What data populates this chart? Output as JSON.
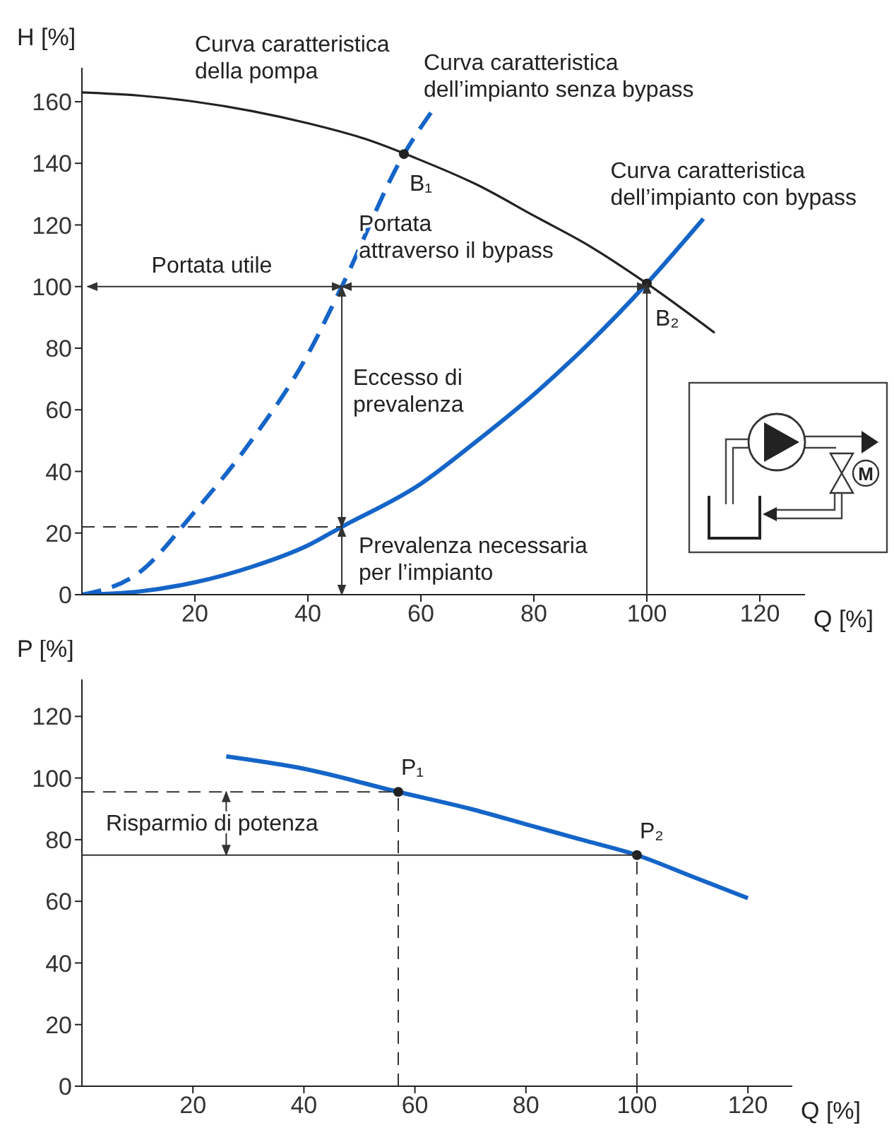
{
  "chart_data": [
    {
      "type": "line",
      "xlabel": "Q [%]",
      "ylabel": "H [%]",
      "xlim": [
        0,
        128
      ],
      "ylim": [
        0,
        171
      ],
      "xticks": [
        20,
        40,
        60,
        80,
        100,
        120
      ],
      "yticks": [
        0,
        20,
        40,
        60,
        80,
        100,
        120,
        140,
        160
      ],
      "legend": false,
      "marker": "none",
      "series": [
        {
          "name": "Curva caratteristica della pompa",
          "color": "#222222",
          "line_style": "solid",
          "x": [
            0,
            10,
            20,
            30,
            40,
            50,
            60,
            70,
            80,
            90,
            100,
            112
          ],
          "values": [
            163,
            162,
            160,
            157,
            153,
            148,
            141,
            133,
            123,
            113,
            101,
            85
          ]
        },
        {
          "name": "Curva caratteristica dell’impianto senza bypass",
          "color": "#1565c8",
          "line_style": "dashed",
          "x": [
            0,
            10,
            20,
            30,
            40,
            46,
            57,
            62
          ],
          "values": [
            0,
            7,
            27,
            50,
            78,
            100,
            143,
            157
          ]
        },
        {
          "name": "Curva caratteristica dell’impianto con bypass",
          "color": "#1565c8",
          "line_style": "solid",
          "x": [
            0,
            10,
            20,
            30,
            40,
            46,
            60,
            70,
            80,
            90,
            100,
            110
          ],
          "values": [
            0,
            1,
            4,
            9,
            16,
            22,
            36,
            50,
            65,
            82,
            101,
            122
          ]
        },
        {
          "type": "scatter",
          "color": "#222222",
          "marker": "circle",
          "x": [
            57,
            100
          ],
          "values": [
            143,
            101
          ]
        }
      ],
      "annotations": [
        "B₁",
        "B₂",
        "Portata utile",
        "Portata attraverso il bypass",
        "Eccesso di prevalenza",
        {
          "text": "Prevalenza necessaria per l’impianto",
          "x": 46,
          "y": 22
        },
        "M"
      ]
    },
    {
      "type": "line",
      "xlabel": "Q [%]",
      "ylabel": "P [%]",
      "xlim": [
        0,
        128
      ],
      "ylim": [
        0,
        132
      ],
      "xticks": [
        20,
        40,
        60,
        80,
        100,
        120
      ],
      "yticks": [
        0,
        20,
        40,
        60,
        80,
        100,
        120
      ],
      "grid": false,
      "legend": false,
      "marker": "none",
      "series": [
        {
          "color": "#1565c8",
          "line_style": "solid",
          "x": [
            26,
            40,
            57,
            70,
            80,
            90,
            100,
            110,
            120
          ],
          "values": [
            107,
            103,
            95.5,
            90,
            85,
            80,
            75,
            68,
            61
          ]
        },
        {
          "type": "scatter",
          "color": "#222222",
          "marker": "circle",
          "x": [
            57,
            100
          ],
          "values": [
            95.5,
            75
          ]
        }
      ],
      "annotations": [
        "P₁",
        "P₂",
        "Risparmio di potenza"
      ]
    }
  ]
}
